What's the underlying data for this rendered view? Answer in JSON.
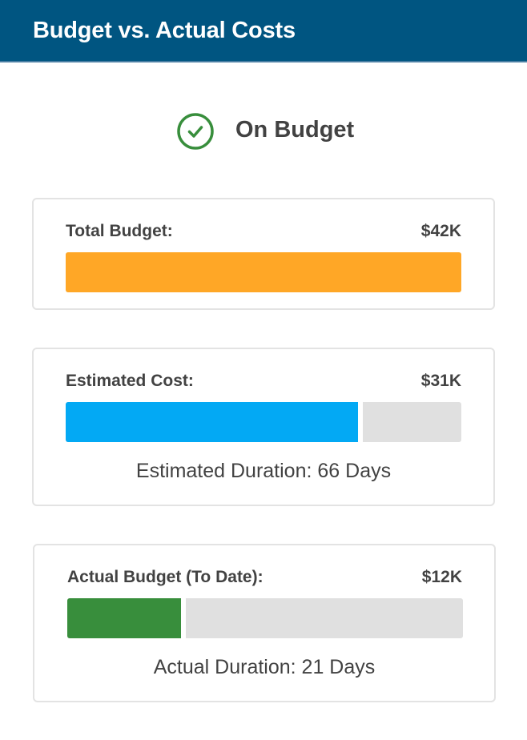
{
  "header": {
    "title": "Budget vs. Actual Costs"
  },
  "status": {
    "label": "On Budget",
    "icon": "check-circle-icon",
    "color": "#388e3c"
  },
  "cards": [
    {
      "label": "Total Budget:",
      "value": "$42K",
      "fill_fraction": 1.0,
      "color": "#ffa726"
    },
    {
      "label": "Estimated Cost:",
      "value": "$31K",
      "fill_fraction": 0.75,
      "color": "#03a9f4",
      "duration": "Estimated Duration: 66 Days"
    },
    {
      "label": "Actual Budget (To Date):",
      "value": "$12K",
      "fill_fraction": 0.3,
      "color": "#388e3c",
      "duration": "Actual Duration: 21 Days"
    }
  ]
}
